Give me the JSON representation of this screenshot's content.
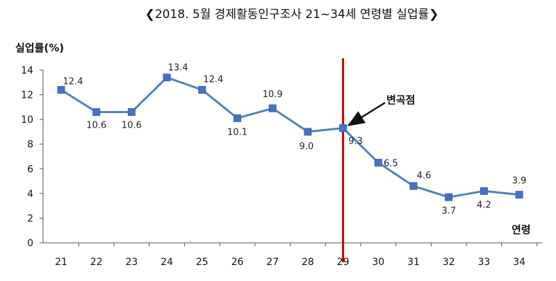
{
  "chart_data": {
    "type": "line",
    "title": "❮2018. 5월 경제활동인구조사 21~34세 연령별 실업률❯",
    "ylabel": "실업률(%)",
    "xlabel": "연령",
    "categories": [
      "21",
      "22",
      "23",
      "24",
      "25",
      "26",
      "27",
      "28",
      "29",
      "30",
      "31",
      "32",
      "33",
      "34"
    ],
    "series": [
      {
        "values": [
          12.4,
          10.6,
          10.6,
          13.4,
          12.4,
          10.1,
          10.9,
          9.0,
          9.3,
          6.5,
          4.6,
          3.7,
          4.2,
          3.9
        ],
        "labels": [
          "12.4",
          "10.6",
          "10.6",
          "13.4",
          "12.4",
          "10.1",
          "10.9",
          "9.0",
          "9.3",
          "6.5",
          "4.6",
          "3.7",
          "4.2",
          "3.9"
        ]
      }
    ],
    "ylim": [
      0,
      14
    ],
    "yticks": [
      "0",
      "2",
      "4",
      "6",
      "8",
      "10",
      "12",
      "14"
    ],
    "grid": false,
    "series_color": "#4f81bd",
    "marker_color": "#4472c4",
    "vline": {
      "category": "29",
      "color": "#cc0000"
    },
    "annotation": {
      "text": "변곡점",
      "target_category": "29"
    }
  }
}
